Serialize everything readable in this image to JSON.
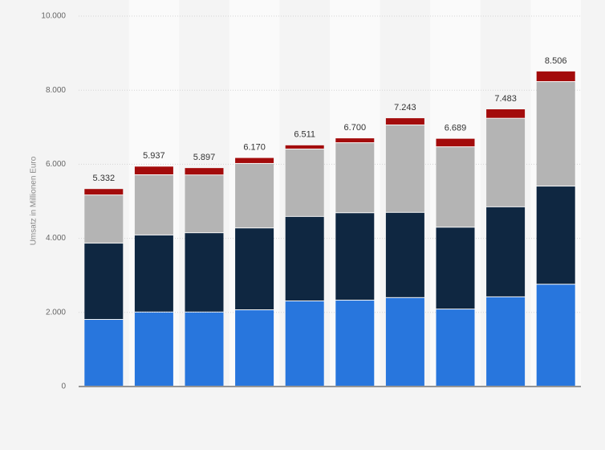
{
  "chart_data": {
    "type": "stacked-bar",
    "y_label": "Umsatz in Millionen Euro",
    "categories": [
      null,
      null,
      null,
      null,
      null,
      null,
      null,
      null,
      null,
      null
    ],
    "series": [
      {
        "color": "#2876dd",
        "values": [
          1800,
          2000,
          2000,
          2060,
          2300,
          2320,
          2390,
          2080,
          2410,
          2750
        ]
      },
      {
        "color": "#0f2741",
        "values": [
          2060,
          2080,
          2140,
          2210,
          2280,
          2360,
          2300,
          2210,
          2430,
          2650
        ]
      },
      {
        "color": "#b4b4b4",
        "values": [
          1300,
          1625,
          1560,
          1740,
          1820,
          1890,
          2360,
          2170,
          2390,
          2820
        ]
      },
      {
        "color": "#a30b0b",
        "values": [
          172,
          232,
          197,
          160,
          111,
          130,
          193,
          229,
          253,
          286
        ]
      }
    ],
    "totals": {
      "values": [
        5332,
        5937,
        5897,
        6170,
        6511,
        6700,
        7243,
        6689,
        7483,
        8506
      ],
      "value_labels": [
        "5.332",
        "5.937",
        "5.897",
        "6.170",
        "6.511",
        "6.700",
        "7.243",
        "6.689",
        "7.483",
        "8.506"
      ]
    },
    "ylim": [
      0,
      10000
    ],
    "yticks": [
      0,
      {
        "value": 2000,
        "label": "2.000"
      },
      {
        "value": 4000,
        "label": "4.000"
      },
      {
        "value": 6000,
        "label": "6.000"
      },
      {
        "value": 8000,
        "label": "8.000"
      },
      {
        "value": 10000,
        "label": "10.000"
      }
    ],
    "grid": true
  }
}
